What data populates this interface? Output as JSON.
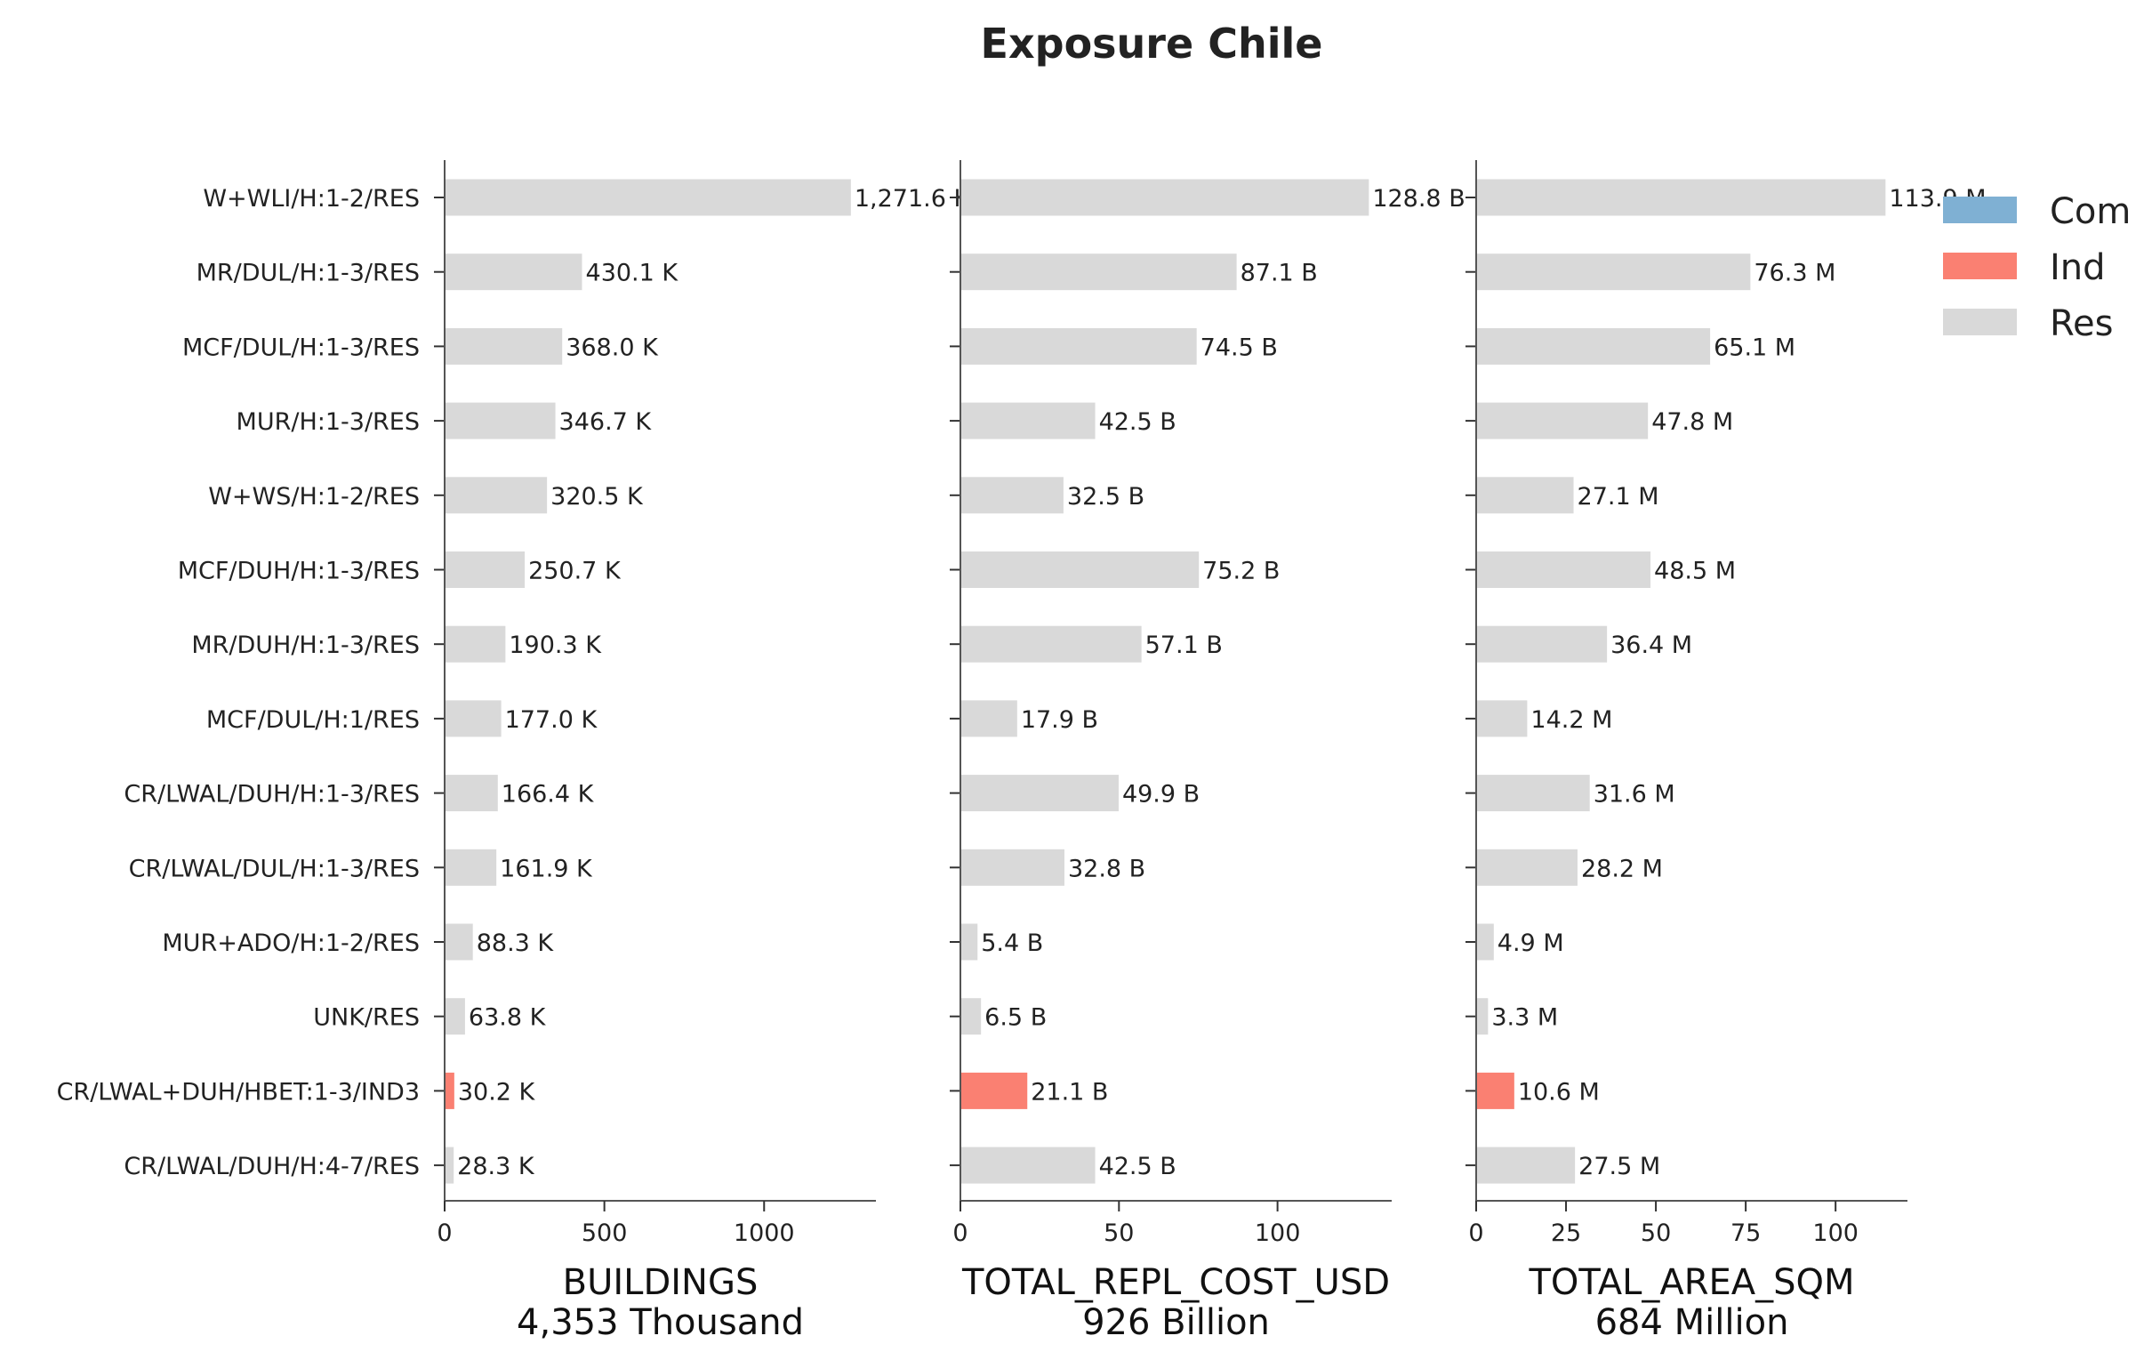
{
  "chart_data": {
    "type": "bar",
    "orientation": "horizontal",
    "title": "Exposure Chile",
    "categories": [
      "W+WLI/H:1-2/RES",
      "MR/DUL/H:1-3/RES",
      "MCF/DUL/H:1-3/RES",
      "MUR/H:1-3/RES",
      "W+WS/H:1-2/RES",
      "MCF/DUH/H:1-3/RES",
      "MR/DUH/H:1-3/RES",
      "MCF/DUL/H:1/RES",
      "CR/LWAL/DUH/H:1-3/RES",
      "CR/LWAL/DUL/H:1-3/RES",
      "MUR+ADO/H:1-2/RES",
      "UNK/RES",
      "CR/LWAL+DUH/HBET:1-3/IND3",
      "CR/LWAL/DUH/H:4-7/RES"
    ],
    "occupancy": [
      "Res",
      "Res",
      "Res",
      "Res",
      "Res",
      "Res",
      "Res",
      "Res",
      "Res",
      "Res",
      "Res",
      "Res",
      "Ind",
      "Res"
    ],
    "legend": {
      "placement": "top-right",
      "entries": [
        {
          "name": "Com",
          "color": "#7fb0d3"
        },
        {
          "name": "Ind",
          "color": "#fa8072"
        },
        {
          "name": "Res",
          "color": "#d9d9d9"
        }
      ]
    },
    "panels": [
      {
        "xlabel": "BUILDINGS",
        "total": "4,353 Thousand",
        "xlim": [
          0,
          1350
        ],
        "ticks": [
          0,
          500,
          1000
        ],
        "tick_labels": [
          "0",
          "500",
          "1000"
        ],
        "values": [
          1271.6,
          430.1,
          368.0,
          346.7,
          320.5,
          250.7,
          190.3,
          177.0,
          166.4,
          161.9,
          88.3,
          63.8,
          30.2,
          28.3
        ],
        "labels": [
          "1,271.6 K",
          "430.1 K",
          "368.0 K",
          "346.7 K",
          "320.5 K",
          "250.7 K",
          "190.3 K",
          "177.0 K",
          "166.4 K",
          "161.9 K",
          "88.3 K",
          "63.8 K",
          "30.2 K",
          "28.3 K"
        ],
        "show_category_labels": true
      },
      {
        "xlabel": "TOTAL_REPL_COST_USD",
        "total": "926 Billion",
        "xlim": [
          0,
          136
        ],
        "ticks": [
          0,
          50,
          100
        ],
        "tick_labels": [
          "0",
          "50",
          "100"
        ],
        "values": [
          128.8,
          87.1,
          74.5,
          42.5,
          32.5,
          75.2,
          57.1,
          17.9,
          49.9,
          32.8,
          5.4,
          6.5,
          21.1,
          42.5
        ],
        "labels": [
          "128.8 B",
          "87.1 B",
          "74.5 B",
          "42.5 B",
          "32.5 B",
          "75.2 B",
          "57.1 B",
          "17.9 B",
          "49.9 B",
          "32.8 B",
          "5.4 B",
          "6.5 B",
          "21.1 B",
          "42.5 B"
        ],
        "show_category_labels": false
      },
      {
        "xlabel": "TOTAL_AREA_SQM",
        "total": "684 Million",
        "xlim": [
          0,
          120
        ],
        "ticks": [
          0,
          25,
          50,
          75,
          100
        ],
        "tick_labels": [
          "0",
          "25",
          "50",
          "75",
          "100"
        ],
        "values": [
          113.9,
          76.3,
          65.1,
          47.8,
          27.1,
          48.5,
          36.4,
          14.2,
          31.6,
          28.2,
          4.9,
          3.3,
          10.6,
          27.5
        ],
        "labels": [
          "113.9 M",
          "76.3 M",
          "65.1 M",
          "47.8 M",
          "27.1 M",
          "48.5 M",
          "36.4 M",
          "14.2 M",
          "31.6 M",
          "28.2 M",
          "4.9 M",
          "3.3 M",
          "10.6 M",
          "27.5 M"
        ],
        "show_category_labels": false
      }
    ]
  }
}
